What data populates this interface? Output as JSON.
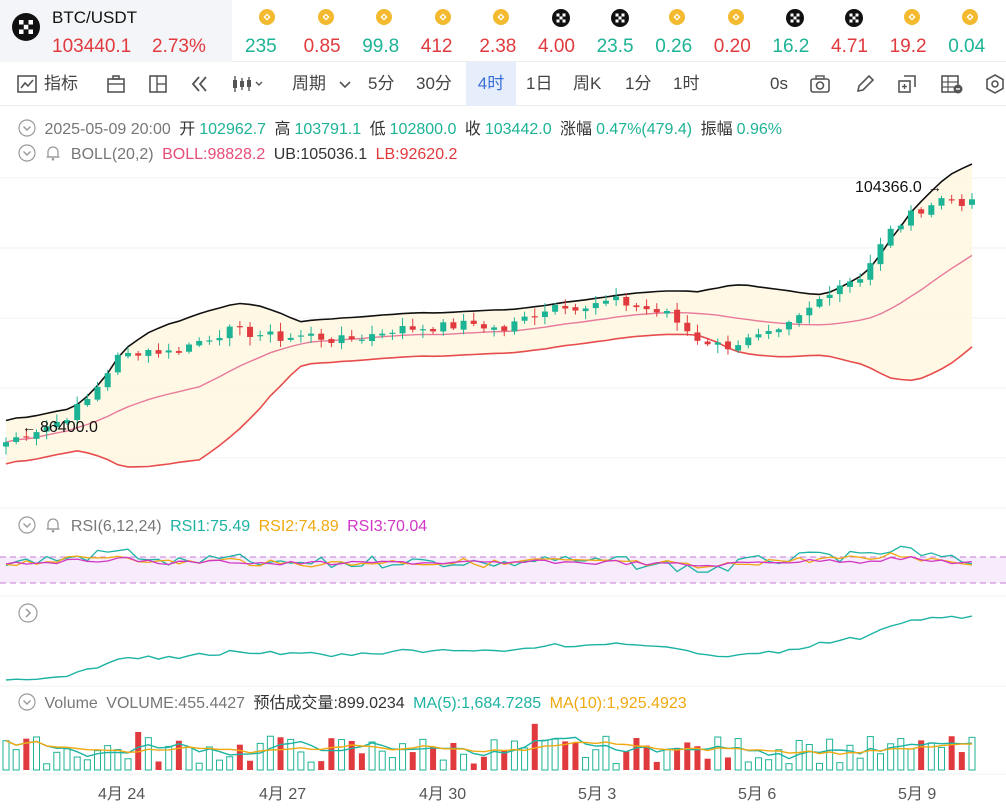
{
  "pair": {
    "name": "BTC/USDT",
    "price": "103440.1",
    "change": "2.73%"
  },
  "ticker": [
    {
      "value": "235",
      "color": "#1db395",
      "icon": "bnb-icon"
    },
    {
      "value": "0.85",
      "color": "#e03a3e",
      "icon": "bnb-icon"
    },
    {
      "value": "99.8",
      "color": "#1db395",
      "icon": "bnb-icon"
    },
    {
      "value": "412",
      "color": "#e03a3e",
      "icon": "bnb-icon"
    },
    {
      "value": "2.38",
      "color": "#e03a3e",
      "icon": "bnb-icon"
    },
    {
      "value": "4.00",
      "color": "#e03a3e",
      "icon": "okx-icon"
    },
    {
      "value": "23.5",
      "color": "#1db395",
      "icon": "okx-icon"
    },
    {
      "value": "0.26",
      "color": "#1db395",
      "icon": "bnb-icon"
    },
    {
      "value": "0.20",
      "color": "#e03a3e",
      "icon": "bnb-icon"
    },
    {
      "value": "16.2",
      "color": "#1db395",
      "icon": "okx-icon"
    },
    {
      "value": "4.71",
      "color": "#e03a3e",
      "icon": "okx-icon"
    },
    {
      "value": "19.2",
      "color": "#e03a3e",
      "icon": "bnb-icon"
    },
    {
      "value": "0.04",
      "color": "#1db395",
      "icon": "bnb-icon"
    }
  ],
  "toolbar": {
    "indicators": "指标",
    "period": "周期",
    "intervals": [
      "5分",
      "30分",
      "4时",
      "1日",
      "周K",
      "1分",
      "1时"
    ],
    "active_interval": "4时",
    "countdown": "0s"
  },
  "ohlc": {
    "date": "2025-05-09 20:00",
    "open_label": "开",
    "open": "102962.7",
    "high_label": "高",
    "high": "103791.1",
    "low_label": "低",
    "low": "102800.0",
    "close_label": "收",
    "close": "103442.0",
    "change_label": "涨幅",
    "change": "0.47%(479.4)",
    "amp_label": "振幅",
    "amp": "0.96%"
  },
  "boll": {
    "name": "BOLL(20,2)",
    "mid": "BOLL:98828.2",
    "ub": "UB:105036.1",
    "lb": "LB:92620.2"
  },
  "rsi": {
    "name": "RSI(6,12,24)",
    "rsi1": "RSI1:75.49",
    "rsi2": "RSI2:74.89",
    "rsi3": "RSI3:70.04"
  },
  "volume": {
    "name": "Volume",
    "value": "VOLUME:455.4427",
    "estimate": "预估成交量:899.0234",
    "ma5": "MA(5):1,684.7285",
    "ma10": "MA(10):1,925.4923"
  },
  "chart_data": {
    "type": "candlestick",
    "interval": "4h",
    "x_ticks": [
      "4月 24",
      "4月 27",
      "4月 30",
      "5月 3",
      "5月 6",
      "5月 9"
    ],
    "annotations": {
      "high_marker": "104366.0",
      "low_marker": "86400.0"
    },
    "close_path": [
      87000,
      87800,
      88500,
      90000,
      92800,
      93400,
      93200,
      94000,
      94700,
      94500,
      94200,
      94400,
      94000,
      94300,
      94800,
      94900,
      95000,
      95200,
      94700,
      95800,
      96600,
      96300,
      96800,
      96300,
      95800,
      94200,
      93600,
      94100,
      94500,
      96000,
      97800,
      98500,
      101500,
      103000,
      103900,
      103440
    ],
    "colors": {
      "up": "#1db395",
      "down": "#e03a3e",
      "boll_mid": "#e87a9a",
      "boll_upper": "#111111",
      "boll_lower": "#e84d4d"
    }
  }
}
